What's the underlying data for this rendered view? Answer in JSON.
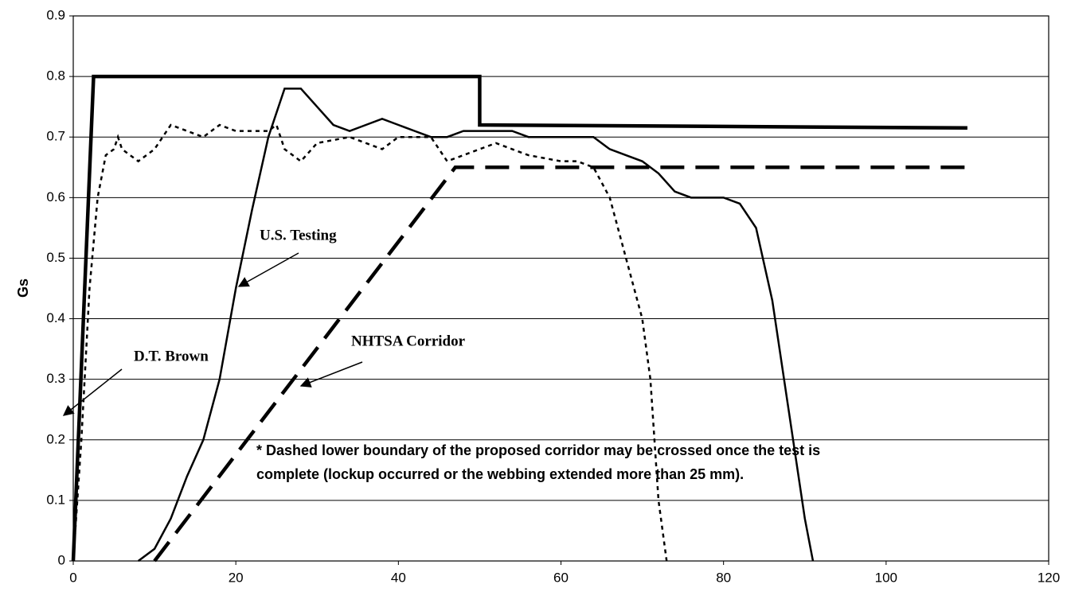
{
  "chart_data": {
    "type": "line",
    "ylabel": "Gs",
    "xlim": [
      0,
      120
    ],
    "xticks": [
      0,
      20,
      40,
      60,
      80,
      100,
      120
    ],
    "ylim": [
      0,
      0.9
    ],
    "yticks": [
      0,
      0.1,
      0.2,
      0.3,
      0.4,
      0.5,
      0.6,
      0.7,
      0.8,
      0.9
    ],
    "grid": true,
    "annotations": [
      "D.T. Brown",
      "U.S. Testing",
      "NHTSA Corridor"
    ],
    "note": [
      "* Dashed lower boundary of the proposed corridor may be crossed once the test is",
      "complete (lockup occurred or the webbing extended more than 25 mm)."
    ],
    "series": [
      {
        "color": "#000000",
        "style": "solid",
        "line": "thick",
        "x": [
          0,
          2.5,
          50,
          50,
          110
        ],
        "values": [
          0,
          0.8,
          0.8,
          0.72,
          0.715
        ]
      },
      {
        "color": "#000000",
        "style": "dashed",
        "line": "thick",
        "x": [
          10,
          47,
          110
        ],
        "values": [
          0,
          0.65,
          0.65
        ]
      },
      {
        "color": "#000000",
        "style": "dotted",
        "line": "thin",
        "x": [
          0,
          1,
          2,
          3,
          4,
          5,
          5.5,
          6,
          8,
          10,
          12,
          14,
          16,
          18,
          20,
          22,
          24,
          25,
          26,
          28,
          30,
          34,
          38,
          40,
          44,
          46,
          50,
          52,
          56,
          60,
          62,
          64,
          66,
          68,
          70,
          71,
          72,
          73
        ],
        "values": [
          0,
          0.2,
          0.45,
          0.6,
          0.67,
          0.68,
          0.7,
          0.68,
          0.66,
          0.68,
          0.72,
          0.71,
          0.7,
          0.72,
          0.71,
          0.71,
          0.71,
          0.72,
          0.68,
          0.66,
          0.69,
          0.7,
          0.68,
          0.7,
          0.7,
          0.66,
          0.68,
          0.69,
          0.67,
          0.66,
          0.66,
          0.65,
          0.6,
          0.5,
          0.4,
          0.3,
          0.1,
          0
        ]
      },
      {
        "color": "#000000",
        "style": "solid",
        "line": "thin",
        "x": [
          8,
          10,
          12,
          14,
          16,
          18,
          20,
          22,
          24,
          26,
          28,
          30,
          32,
          34,
          36,
          38,
          40,
          42,
          44,
          46,
          48,
          54,
          56,
          64,
          66,
          68,
          70,
          72,
          74,
          76,
          80,
          82,
          84,
          86,
          88,
          90,
          91
        ],
        "values": [
          0,
          0.02,
          0.07,
          0.14,
          0.2,
          0.3,
          0.45,
          0.58,
          0.7,
          0.78,
          0.78,
          0.75,
          0.72,
          0.71,
          0.72,
          0.73,
          0.72,
          0.71,
          0.7,
          0.7,
          0.71,
          0.71,
          0.7,
          0.7,
          0.68,
          0.67,
          0.66,
          0.64,
          0.61,
          0.6,
          0.6,
          0.59,
          0.55,
          0.43,
          0.25,
          0.07,
          0
        ]
      }
    ]
  }
}
